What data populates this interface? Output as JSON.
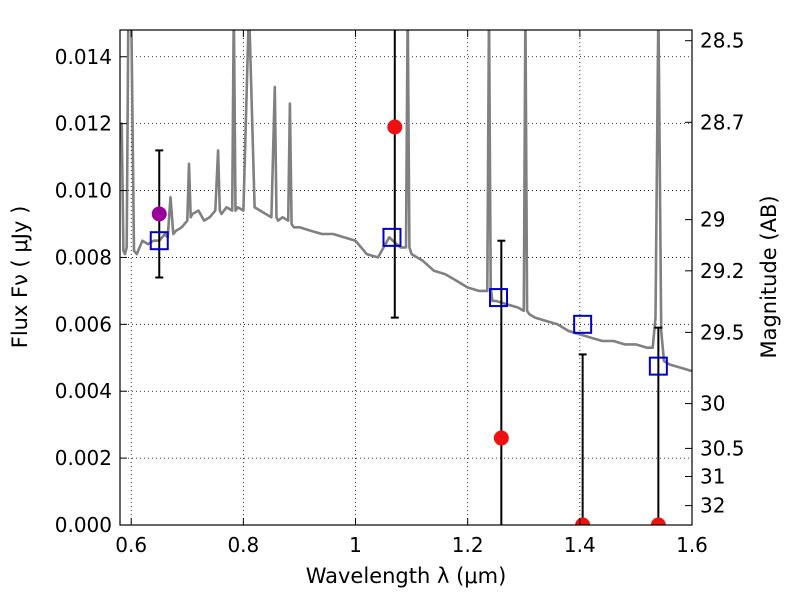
{
  "chart_data": {
    "type": "line",
    "title": "",
    "xlabel": "Wavelength  λ (μm)",
    "ylabel": "Flux  Fν  ( μJy )",
    "ylabel_right": "Magnitude (AB)",
    "xlim": [
      0.58,
      1.6
    ],
    "ylim": [
      0,
      0.0148
    ],
    "x_ticks": [
      0.6,
      0.8,
      1.0,
      1.2,
      1.4,
      1.6
    ],
    "x_tick_labels": [
      "0.6",
      "0.8",
      "1",
      "1.2",
      "1.4",
      "1.6"
    ],
    "y_ticks": [
      0,
      0.002,
      0.004,
      0.006,
      0.008,
      0.01,
      0.012,
      0.014
    ],
    "y_tick_labels": [
      "0.000",
      "0.002",
      "0.004",
      "0.006",
      "0.008",
      "0.010",
      "0.012",
      "0.014"
    ],
    "right_axis_ticks": [
      {
        "label": "28.5",
        "flux": 0.01448
      },
      {
        "label": "28.7",
        "flux": 0.01204
      },
      {
        "label": "29",
        "flux": 0.00913
      },
      {
        "label": "29.2",
        "flux": 0.0076
      },
      {
        "label": "29.5",
        "flux": 0.00576
      },
      {
        "label": "30",
        "flux": 0.00363
      },
      {
        "label": "30.5",
        "flux": 0.00229
      },
      {
        "label": "31",
        "flux": 0.00145
      },
      {
        "label": "32",
        "flux": 0.00058
      }
    ],
    "grid": true,
    "colors": {
      "spectrum": "#808080",
      "model_box": "#0000cc",
      "detection": "#ee1111",
      "highlight": "#990099",
      "errorbar": "#000000"
    },
    "spectrum": {
      "x": [
        0.58,
        0.583,
        0.586,
        0.589,
        0.592,
        0.595,
        0.598,
        0.6,
        0.605,
        0.61,
        0.62,
        0.63,
        0.64,
        0.65,
        0.66,
        0.665,
        0.67,
        0.675,
        0.68,
        0.69,
        0.7,
        0.703,
        0.706,
        0.709,
        0.72,
        0.73,
        0.74,
        0.75,
        0.755,
        0.758,
        0.761,
        0.77,
        0.78,
        0.783,
        0.786,
        0.79,
        0.8,
        0.81,
        0.82,
        0.83,
        0.84,
        0.85,
        0.856,
        0.859,
        0.862,
        0.87,
        0.88,
        0.883,
        0.886,
        0.89,
        0.9,
        0.92,
        0.94,
        0.96,
        0.98,
        1.0,
        1.02,
        1.04,
        1.06,
        1.08,
        1.09,
        1.093,
        1.096,
        1.1,
        1.12,
        1.14,
        1.16,
        1.18,
        1.2,
        1.22,
        1.235,
        1.238,
        1.241,
        1.244,
        1.25,
        1.27,
        1.29,
        1.3,
        1.303,
        1.306,
        1.31,
        1.32,
        1.34,
        1.36,
        1.38,
        1.4,
        1.42,
        1.44,
        1.46,
        1.48,
        1.5,
        1.52,
        1.53,
        1.535,
        1.54,
        1.545,
        1.55,
        1.56,
        1.58,
        1.6
      ],
      "y": [
        0.0115,
        0.012,
        0.0082,
        0.0081,
        0.0083,
        0.0155,
        0.0155,
        0.0155,
        0.0082,
        0.0081,
        0.0085,
        0.0084,
        0.0085,
        0.0085,
        0.0087,
        0.0086,
        0.0098,
        0.0087,
        0.0088,
        0.0089,
        0.0091,
        0.0108,
        0.0092,
        0.0093,
        0.0094,
        0.0091,
        0.0092,
        0.0094,
        0.0112,
        0.0094,
        0.0093,
        0.0095,
        0.0094,
        0.0155,
        0.0094,
        0.0095,
        0.0094,
        0.0155,
        0.0095,
        0.0094,
        0.0093,
        0.0092,
        0.0131,
        0.0092,
        0.0091,
        0.0092,
        0.0091,
        0.0126,
        0.009,
        0.0089,
        0.0089,
        0.0088,
        0.0087,
        0.0087,
        0.0086,
        0.0085,
        0.0081,
        0.008,
        0.0086,
        0.0083,
        0.0083,
        0.0155,
        0.0083,
        0.0081,
        0.0079,
        0.0076,
        0.0075,
        0.0073,
        0.0071,
        0.007,
        0.007,
        0.0155,
        0.0071,
        0.0067,
        0.0067,
        0.0066,
        0.0065,
        0.0064,
        0.0155,
        0.0064,
        0.0063,
        0.0062,
        0.0061,
        0.006,
        0.0058,
        0.0057,
        0.0056,
        0.0055,
        0.0055,
        0.0054,
        0.0054,
        0.0053,
        0.0053,
        0.0062,
        0.0155,
        0.0058,
        0.0049,
        0.0048,
        0.0047,
        0.0046
      ]
    },
    "model_points": {
      "x": [
        0.65,
        1.065,
        1.255,
        1.405,
        1.54
      ],
      "y": [
        0.0085,
        0.0086,
        0.0068,
        0.006,
        0.00475
      ]
    },
    "observations": [
      {
        "x": 0.65,
        "y": 0.0093,
        "yerr_low": 0.0074,
        "yerr_high": 0.0112,
        "color": "highlight"
      },
      {
        "x": 1.07,
        "y": 0.0119,
        "yerr_low": 0.0062,
        "yerr_high": 0.0155,
        "color": "detection"
      },
      {
        "x": 1.26,
        "y": 0.0026,
        "yerr_low": 0.0,
        "yerr_high": 0.0085,
        "color": "detection"
      },
      {
        "x": 1.405,
        "y": 0.0,
        "yerr_low": 0.0,
        "yerr_high": 0.0051,
        "color": "detection"
      },
      {
        "x": 1.54,
        "y": 0.0,
        "yerr_low": 0.0,
        "yerr_high": 0.0059,
        "color": "detection"
      }
    ]
  }
}
